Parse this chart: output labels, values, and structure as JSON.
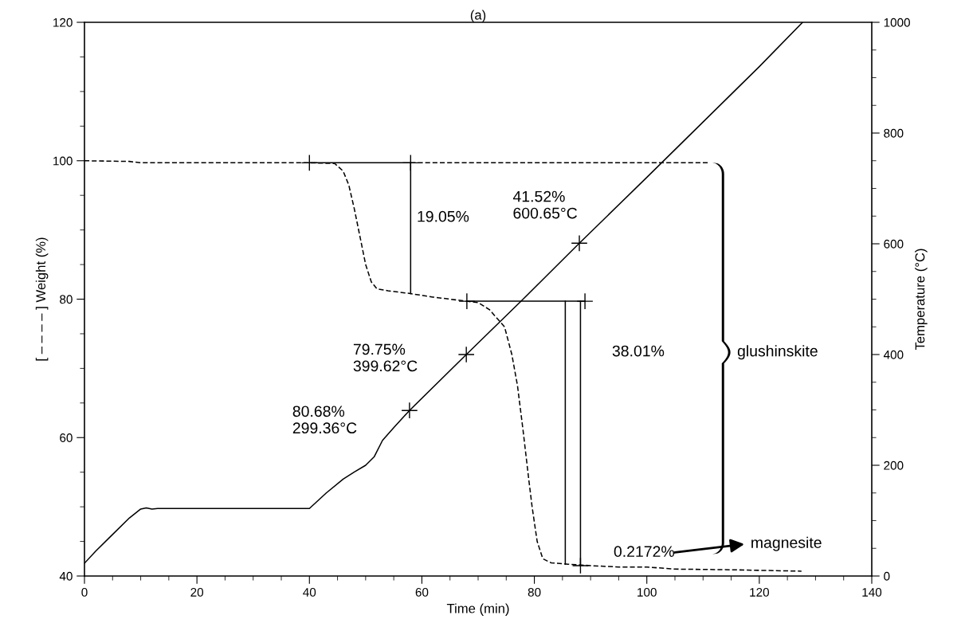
{
  "chart_data": {
    "type": "line",
    "title": "(a)",
    "xlabel": "Time (min)",
    "ylabel": "[ – – – – ] Weight (%)",
    "y2label": "Temperature (°C)",
    "xlim": [
      0,
      140
    ],
    "ylim": [
      40,
      120
    ],
    "y2lim": [
      0,
      1000
    ],
    "xticks": [
      0,
      {
        "value": 5,
        "label": null
      },
      {
        "value": 10,
        "label": null
      },
      {
        "value": 15,
        "label": null
      },
      20,
      {
        "value": 25,
        "label": null
      },
      {
        "value": 30,
        "label": null
      },
      {
        "value": 35,
        "label": null
      },
      40,
      {
        "value": 45,
        "label": null
      },
      {
        "value": 50,
        "label": null
      },
      {
        "value": 55,
        "label": null
      },
      60,
      {
        "value": 65,
        "label": null
      },
      {
        "value": 70,
        "label": null
      },
      {
        "value": 75,
        "label": null
      },
      80,
      {
        "value": 85,
        "label": null
      },
      {
        "value": 90,
        "label": null
      },
      {
        "value": 95,
        "label": null
      },
      100,
      {
        "value": 105,
        "label": null
      },
      {
        "value": 110,
        "label": null
      },
      {
        "value": 115,
        "label": null
      },
      120,
      {
        "value": 125,
        "label": null
      },
      {
        "value": 130,
        "label": null
      },
      {
        "value": 135,
        "label": null
      },
      140
    ],
    "yticks": [
      40,
      {
        "value": 45,
        "label": null
      },
      {
        "value": 50,
        "label": null
      },
      {
        "value": 55,
        "label": null
      },
      60,
      {
        "value": 65,
        "label": null
      },
      {
        "value": 70,
        "label": null
      },
      {
        "value": 75,
        "label": null
      },
      80,
      {
        "value": 85,
        "label": null
      },
      {
        "value": 90,
        "label": null
      },
      {
        "value": 95,
        "label": null
      },
      100,
      {
        "value": 105,
        "label": null
      },
      {
        "value": 110,
        "label": null
      },
      {
        "value": 115,
        "label": null
      },
      120
    ],
    "y2ticks": [
      0,
      {
        "value": 50,
        "label": null
      },
      {
        "value": 100,
        "label": null
      },
      {
        "value": 150,
        "label": null
      },
      200,
      {
        "value": 250,
        "label": null
      },
      {
        "value": 300,
        "label": null
      },
      {
        "value": 350,
        "label": null
      },
      400,
      {
        "value": 450,
        "label": null
      },
      {
        "value": 500,
        "label": null
      },
      {
        "value": 550,
        "label": null
      },
      600,
      {
        "value": 650,
        "label": null
      },
      {
        "value": 700,
        "label": null
      },
      {
        "value": 750,
        "label": null
      },
      800,
      {
        "value": 850,
        "label": null
      },
      {
        "value": 900,
        "label": null
      },
      {
        "value": 950,
        "label": null
      },
      1000
    ],
    "grid": false,
    "series": [
      {
        "color": "#000000",
        "line_style": "dashed",
        "x": [
          0,
          8,
          10,
          40,
          44.5,
          46,
          47,
          48,
          49,
          50,
          51,
          52,
          54,
          58,
          62,
          66,
          68,
          70,
          72,
          74.7,
          76,
          77,
          78,
          79,
          79.6,
          80.5,
          81.5,
          83,
          86,
          90,
          95,
          100,
          105,
          115,
          127.5
        ],
        "values": [
          100,
          99.9,
          99.7,
          99.7,
          99.6,
          98.5,
          96.5,
          93,
          89,
          85,
          82.5,
          81.5,
          81.2,
          80.8,
          80.3,
          79.9,
          79.7,
          79.5,
          78.5,
          76,
          72,
          67.5,
          61,
          54,
          50,
          45,
          42.5,
          41.9,
          41.7,
          41.5,
          41.3,
          41.3,
          41,
          40.9,
          40.7
        ]
      },
      {
        "axis": "y2",
        "color": "#000000",
        "line_style": "solid",
        "x": [
          0,
          2,
          5,
          8,
          10,
          11,
          12,
          13,
          40,
          43,
          46,
          48,
          50,
          51.5,
          53,
          55,
          57.8,
          67.9,
          78,
          88,
          100,
          110,
          120,
          127.7
        ],
        "values": [
          23,
          45,
          75,
          105,
          121,
          123,
          121,
          122,
          122,
          150,
          175,
          188,
          200,
          215,
          245,
          268,
          299,
          400,
          500,
          601,
          720,
          820,
          920,
          1000
        ]
      },
      {
        "type": "line",
        "color": "#000000",
        "line_style": "solid",
        "x": [
          40,
          58
        ],
        "values": [
          99.7,
          99.7
        ]
      },
      {
        "type": "line",
        "color": "#000000",
        "line_style": "dashed",
        "x": [
          58,
          111
        ],
        "values": [
          99.7,
          99.7
        ]
      },
      {
        "type": "line",
        "color": "#000000",
        "line_style": "solid",
        "x": [
          68,
          89
        ],
        "values": [
          79.7,
          79.7
        ]
      },
      {
        "type": "line",
        "color": "#000000",
        "line_style": "solid",
        "x": [
          58,
          58
        ],
        "values": [
          99.7,
          80.8
        ]
      },
      {
        "type": "line",
        "color": "#000000",
        "line_style": "solid",
        "x": [
          85.5,
          85.5
        ],
        "values": [
          79.7,
          41.7
        ]
      },
      {
        "type": "line",
        "color": "#000000",
        "line_style": "solid",
        "x": [
          88.2,
          88.2
        ],
        "values": [
          79.7,
          41.5
        ]
      },
      {
        "type": "scatter",
        "color": "#000000",
        "marker": "cross",
        "x": [
          40,
          58,
          68,
          89,
          88.2
        ],
        "values": [
          99.7,
          99.7,
          79.7,
          79.7,
          41.5
        ]
      },
      {
        "type": "scatter",
        "axis": "y2",
        "color": "#000000",
        "marker": "cross",
        "x": [
          57.8,
          67.9,
          88
        ],
        "values": [
          299,
          400,
          601
        ]
      }
    ],
    "annotations": [
      "19.05%",
      "41.52%\n600.65°C",
      "79.75%\n399.62°C",
      "80.68%\n299.36°C",
      "38.01%",
      "0.2172%",
      "glushinskite",
      "magnesite"
    ]
  }
}
